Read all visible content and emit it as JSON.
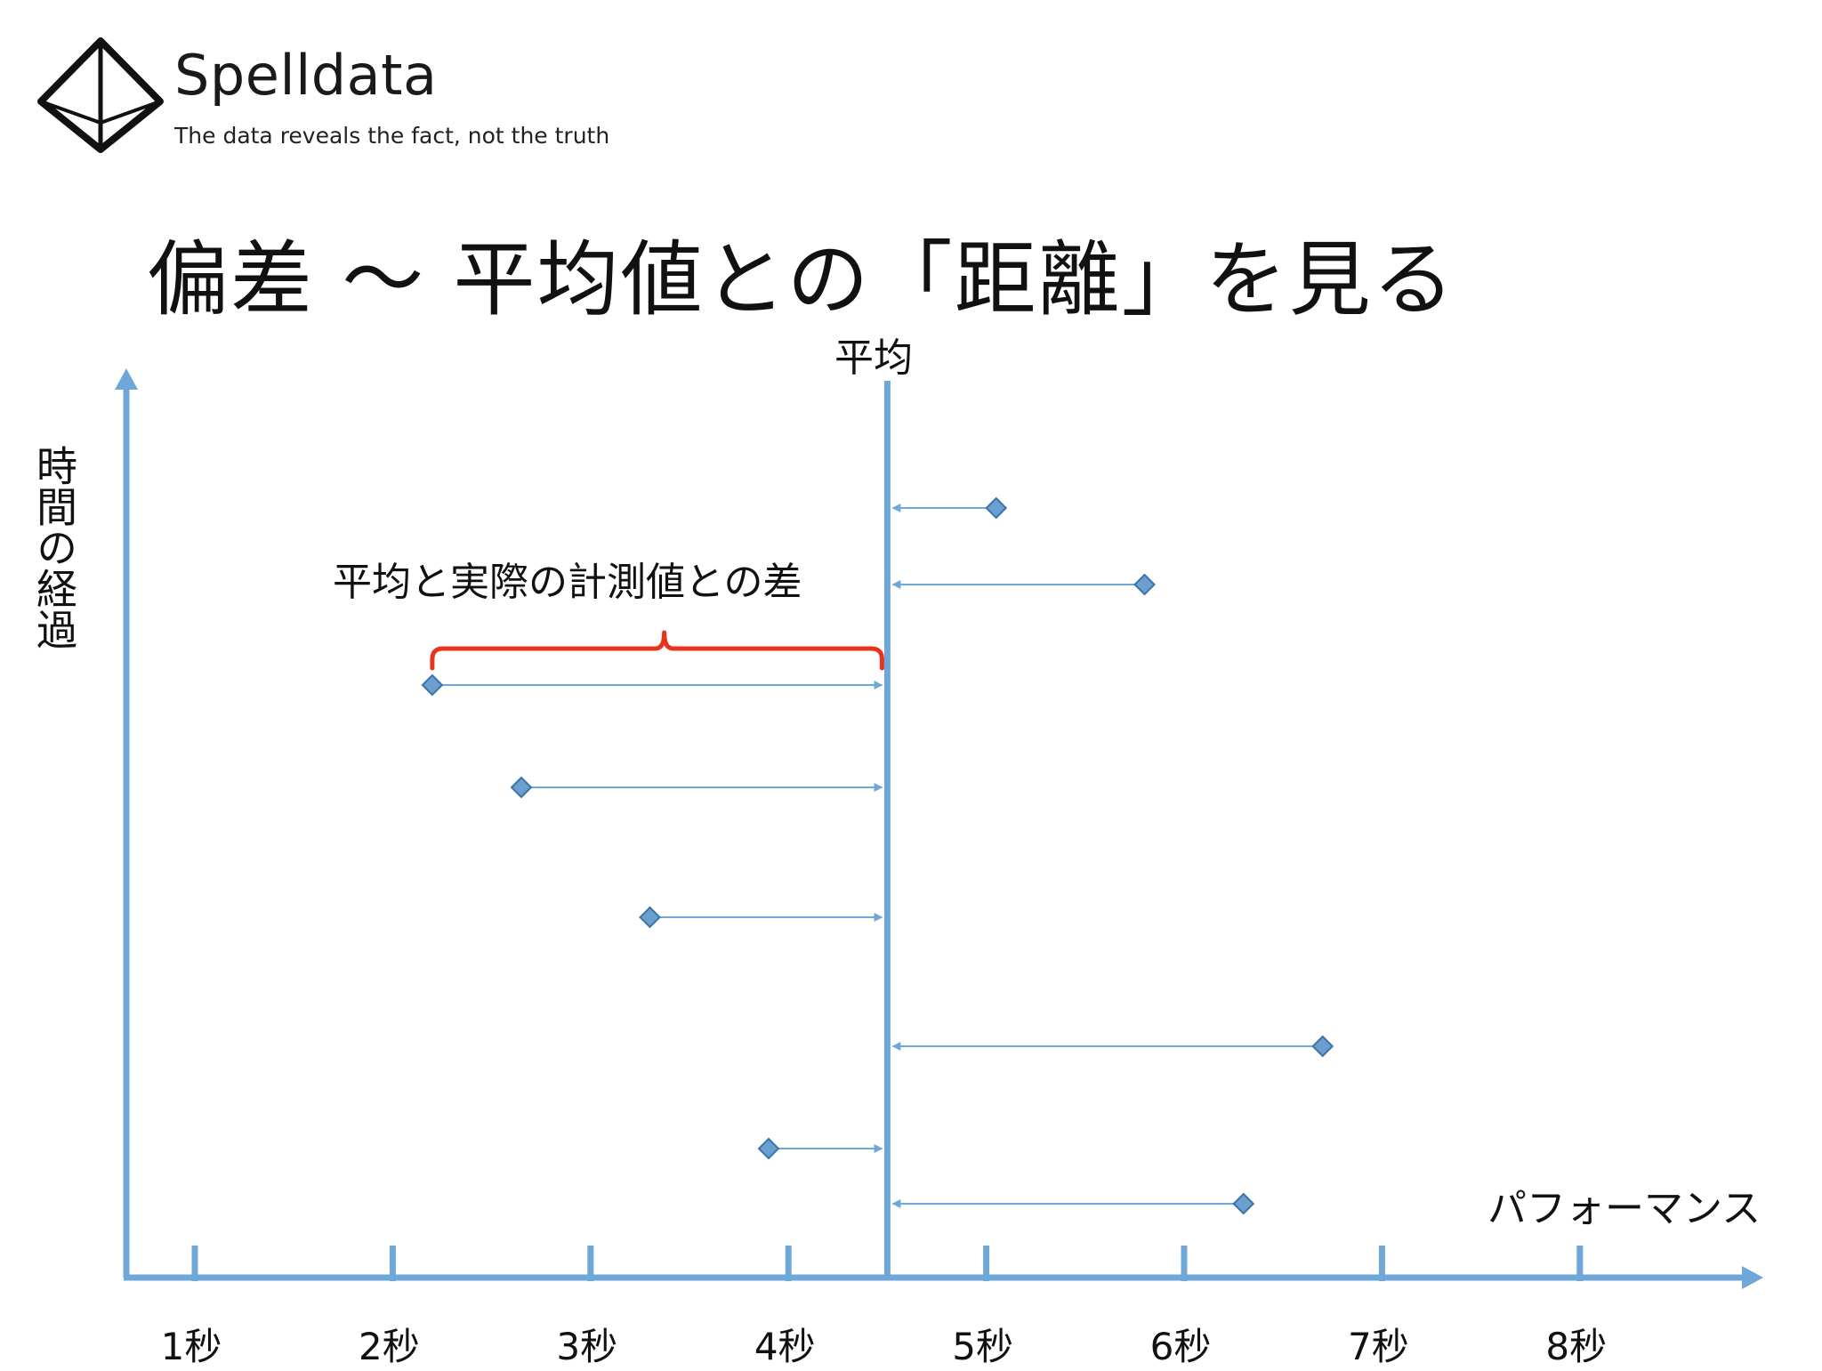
{
  "brand": {
    "name": "Spelldata",
    "tagline": "The data reveals the fact, not the truth"
  },
  "title": "偏差 ～ 平均値との「距離」を見る",
  "colors": {
    "axis": "#6fa8d8",
    "marker_fill": "#6a9fd0",
    "marker_stroke": "#3d74a8",
    "brace": "#e8341c",
    "text": "#111111"
  },
  "chart_data": {
    "type": "scatter",
    "ylabel": "時間の経過",
    "xlabel": "パフォーマンス",
    "mean_label": "平均",
    "mean": 4.5,
    "x_ticks": [
      1,
      2,
      3,
      4,
      5,
      6,
      7,
      8
    ],
    "tick_labels": [
      "1秒",
      "2秒",
      "3秒",
      "4秒",
      "5秒",
      "6秒",
      "7秒",
      "8秒"
    ],
    "points": [
      {
        "x": 5.05,
        "y": 8
      },
      {
        "x": 5.8,
        "y": 7
      },
      {
        "x": 2.2,
        "y": 6
      },
      {
        "x": 2.65,
        "y": 5
      },
      {
        "x": 3.3,
        "y": 4
      },
      {
        "x": 6.7,
        "y": 3
      },
      {
        "x": 3.9,
        "y": 2
      },
      {
        "x": 6.3,
        "y": 1
      }
    ],
    "annotation": "平均と実際の計測値との差"
  }
}
